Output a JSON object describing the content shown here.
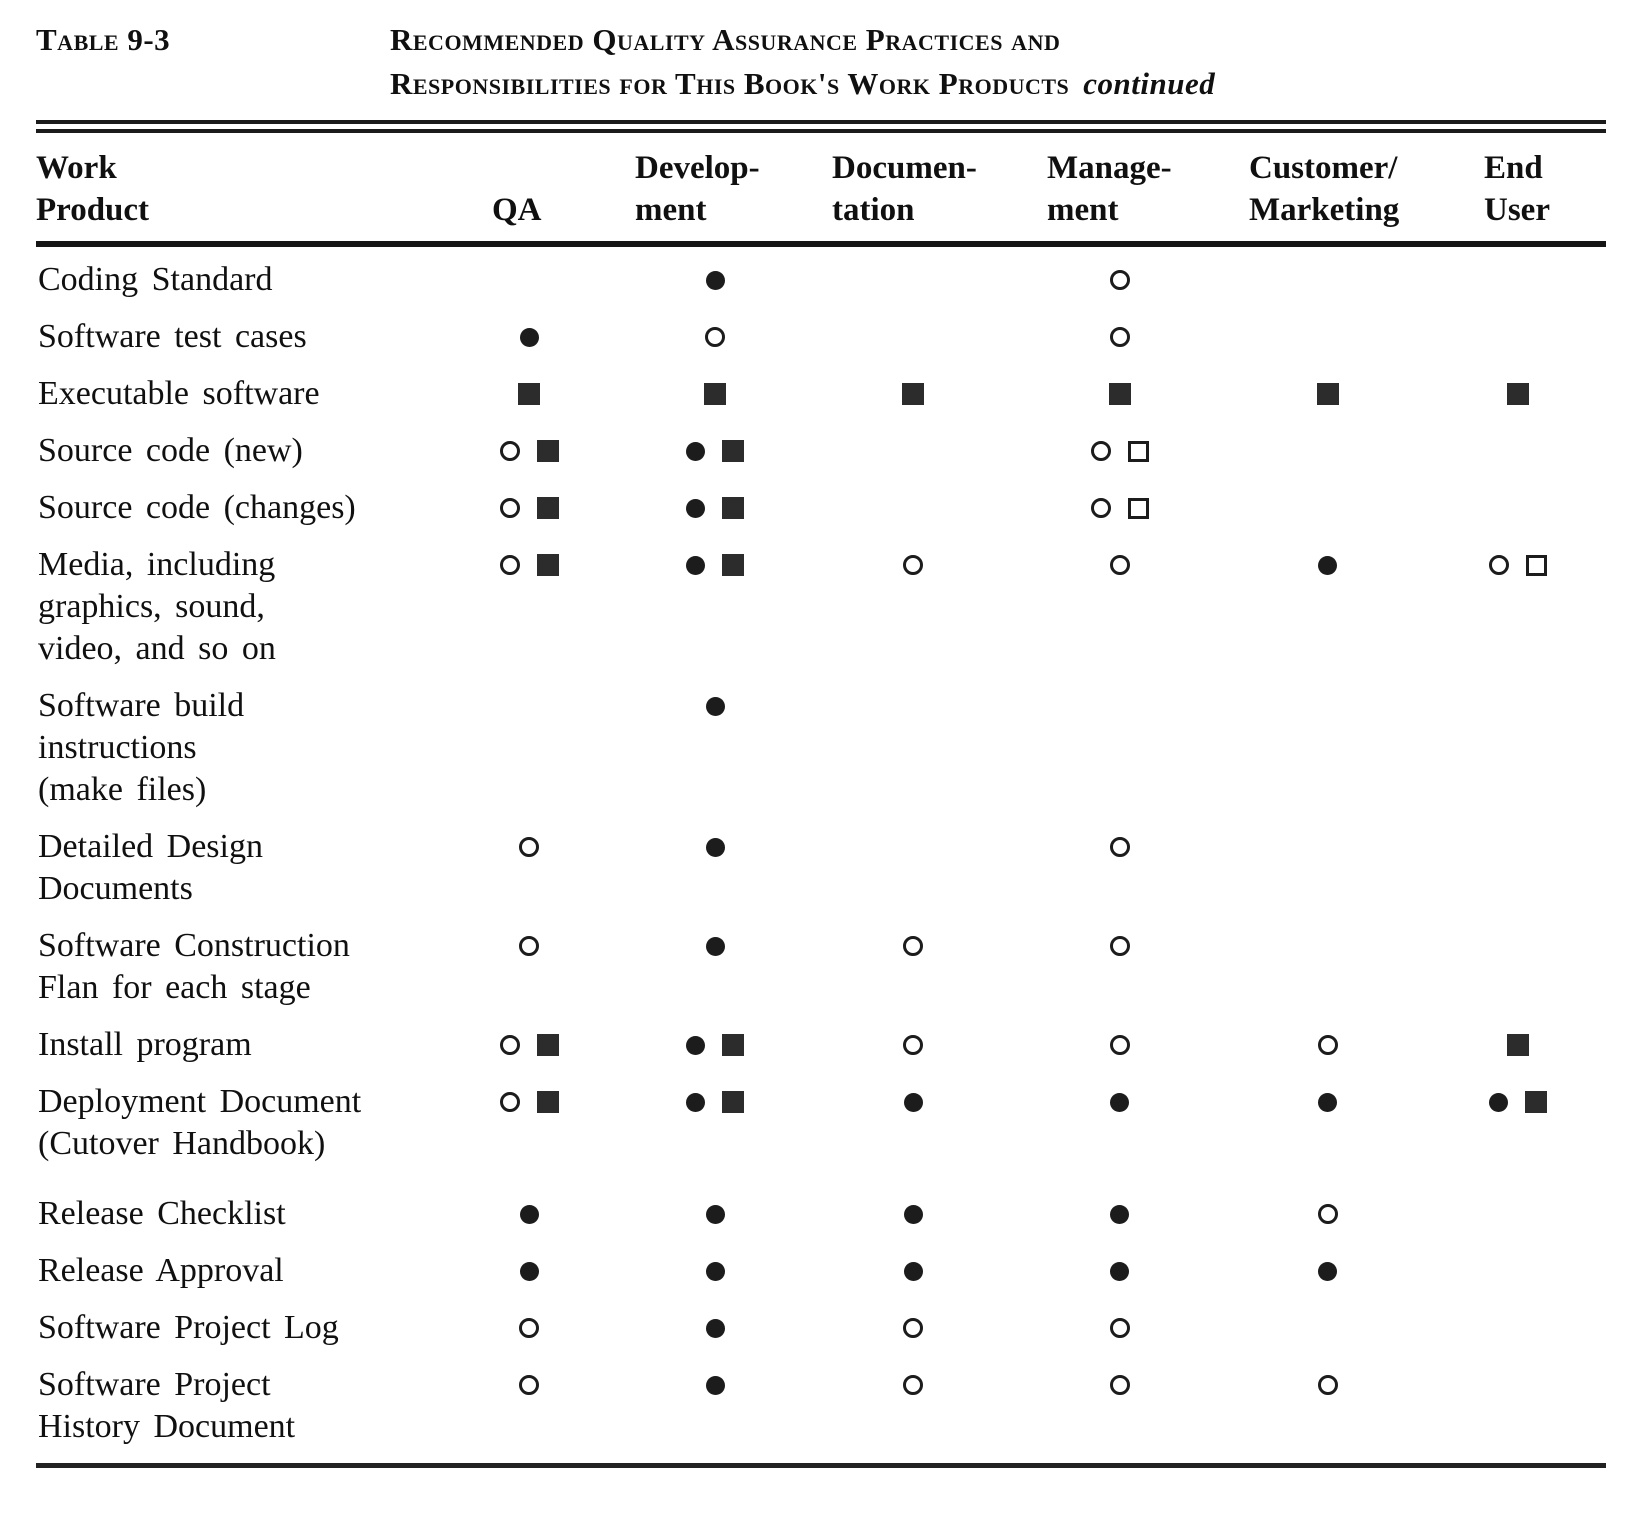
{
  "caption": {
    "table_label": "Table 9-3",
    "title_line1": "Recommended Quality Assurance Practices and",
    "title_line2": "Responsibilities for This Book's Work Products",
    "title_suffix": "continued"
  },
  "columns": [
    {
      "id": "product",
      "label": "Work\nProduct"
    },
    {
      "id": "qa",
      "label": "QA"
    },
    {
      "id": "development",
      "label": "Develop-\nment"
    },
    {
      "id": "documentation",
      "label": "Documen-\ntation"
    },
    {
      "id": "management",
      "label": "Manage-\nment"
    },
    {
      "id": "customer_marketing",
      "label": "Customer/\nMarketing"
    },
    {
      "id": "end_user",
      "label": "End\nUser"
    }
  ],
  "symbols": {
    "filled_circle": "●",
    "open_circle": "○",
    "filled_square": "■",
    "open_square": "□"
  },
  "rows": [
    {
      "product": "Coding Standard",
      "qa": [],
      "development": [
        "filled_circle"
      ],
      "documentation": [],
      "management": [
        "open_circle"
      ],
      "customer_marketing": [],
      "end_user": []
    },
    {
      "product": "Software test cases",
      "qa": [
        "filled_circle"
      ],
      "development": [
        "open_circle"
      ],
      "documentation": [],
      "management": [
        "open_circle"
      ],
      "customer_marketing": [],
      "end_user": []
    },
    {
      "product": "Executable software",
      "qa": [
        "filled_square"
      ],
      "development": [
        "filled_square"
      ],
      "documentation": [
        "filled_square"
      ],
      "management": [
        "filled_square"
      ],
      "customer_marketing": [
        "filled_square"
      ],
      "end_user": [
        "filled_square"
      ]
    },
    {
      "product": "Source code (new)",
      "qa": [
        "open_circle",
        "filled_square"
      ],
      "development": [
        "filled_circle",
        "filled_square"
      ],
      "documentation": [],
      "management": [
        "open_circle",
        "open_square"
      ],
      "customer_marketing": [],
      "end_user": []
    },
    {
      "product": "Source code (changes)",
      "qa": [
        "open_circle",
        "filled_square"
      ],
      "development": [
        "filled_circle",
        "filled_square"
      ],
      "documentation": [],
      "management": [
        "open_circle",
        "open_square"
      ],
      "customer_marketing": [],
      "end_user": []
    },
    {
      "product": "Media, including\ngraphics, sound,\nvideo, and so on",
      "qa": [
        "open_circle",
        "filled_square"
      ],
      "development": [
        "filled_circle",
        "filled_square"
      ],
      "documentation": [
        "open_circle"
      ],
      "management": [
        "open_circle"
      ],
      "customer_marketing": [
        "filled_circle"
      ],
      "end_user": [
        "open_circle",
        "open_square"
      ]
    },
    {
      "product": "Software build\ninstructions\n(make files)",
      "qa": [],
      "development": [
        "filled_circle"
      ],
      "documentation": [],
      "management": [],
      "customer_marketing": [],
      "end_user": []
    },
    {
      "product": "Detailed Design\nDocuments",
      "qa": [
        "open_circle"
      ],
      "development": [
        "filled_circle"
      ],
      "documentation": [],
      "management": [
        "open_circle"
      ],
      "customer_marketing": [],
      "end_user": []
    },
    {
      "product": "Software Construction\nFlan for each stage",
      "qa": [
        "open_circle"
      ],
      "development": [
        "filled_circle"
      ],
      "documentation": [
        "open_circle"
      ],
      "management": [
        "open_circle"
      ],
      "customer_marketing": [],
      "end_user": []
    },
    {
      "product": "Install program",
      "qa": [
        "open_circle",
        "filled_square"
      ],
      "development": [
        "filled_circle",
        "filled_square"
      ],
      "documentation": [
        "open_circle"
      ],
      "management": [
        "open_circle"
      ],
      "customer_marketing": [
        "open_circle"
      ],
      "end_user": [
        "filled_square"
      ]
    },
    {
      "product": "Deployment Document\n(Cutover Handbook)",
      "qa": [
        "open_circle",
        "filled_square"
      ],
      "development": [
        "filled_circle",
        "filled_square"
      ],
      "documentation": [
        "filled_circle"
      ],
      "management": [
        "filled_circle"
      ],
      "customer_marketing": [
        "filled_circle"
      ],
      "end_user": [
        "filled_circle",
        "filled_square"
      ]
    },
    {
      "product": "Release Checklist",
      "qa": [
        "filled_circle"
      ],
      "development": [
        "filled_circle"
      ],
      "documentation": [
        "filled_circle"
      ],
      "management": [
        "filled_circle"
      ],
      "customer_marketing": [
        "open_circle"
      ],
      "end_user": []
    },
    {
      "product": "Release Approval",
      "qa": [
        "filled_circle"
      ],
      "development": [
        "filled_circle"
      ],
      "documentation": [
        "filled_circle"
      ],
      "management": [
        "filled_circle"
      ],
      "customer_marketing": [
        "filled_circle"
      ],
      "end_user": []
    },
    {
      "product": "Software Project Log",
      "qa": [
        "open_circle"
      ],
      "development": [
        "filled_circle"
      ],
      "documentation": [
        "open_circle"
      ],
      "management": [
        "open_circle"
      ],
      "customer_marketing": [],
      "end_user": []
    },
    {
      "product": "Software Project\nHistory Document",
      "qa": [
        "open_circle"
      ],
      "development": [
        "filled_circle"
      ],
      "documentation": [
        "open_circle"
      ],
      "management": [
        "open_circle"
      ],
      "customer_marketing": [
        "open_circle"
      ],
      "end_user": []
    }
  ]
}
